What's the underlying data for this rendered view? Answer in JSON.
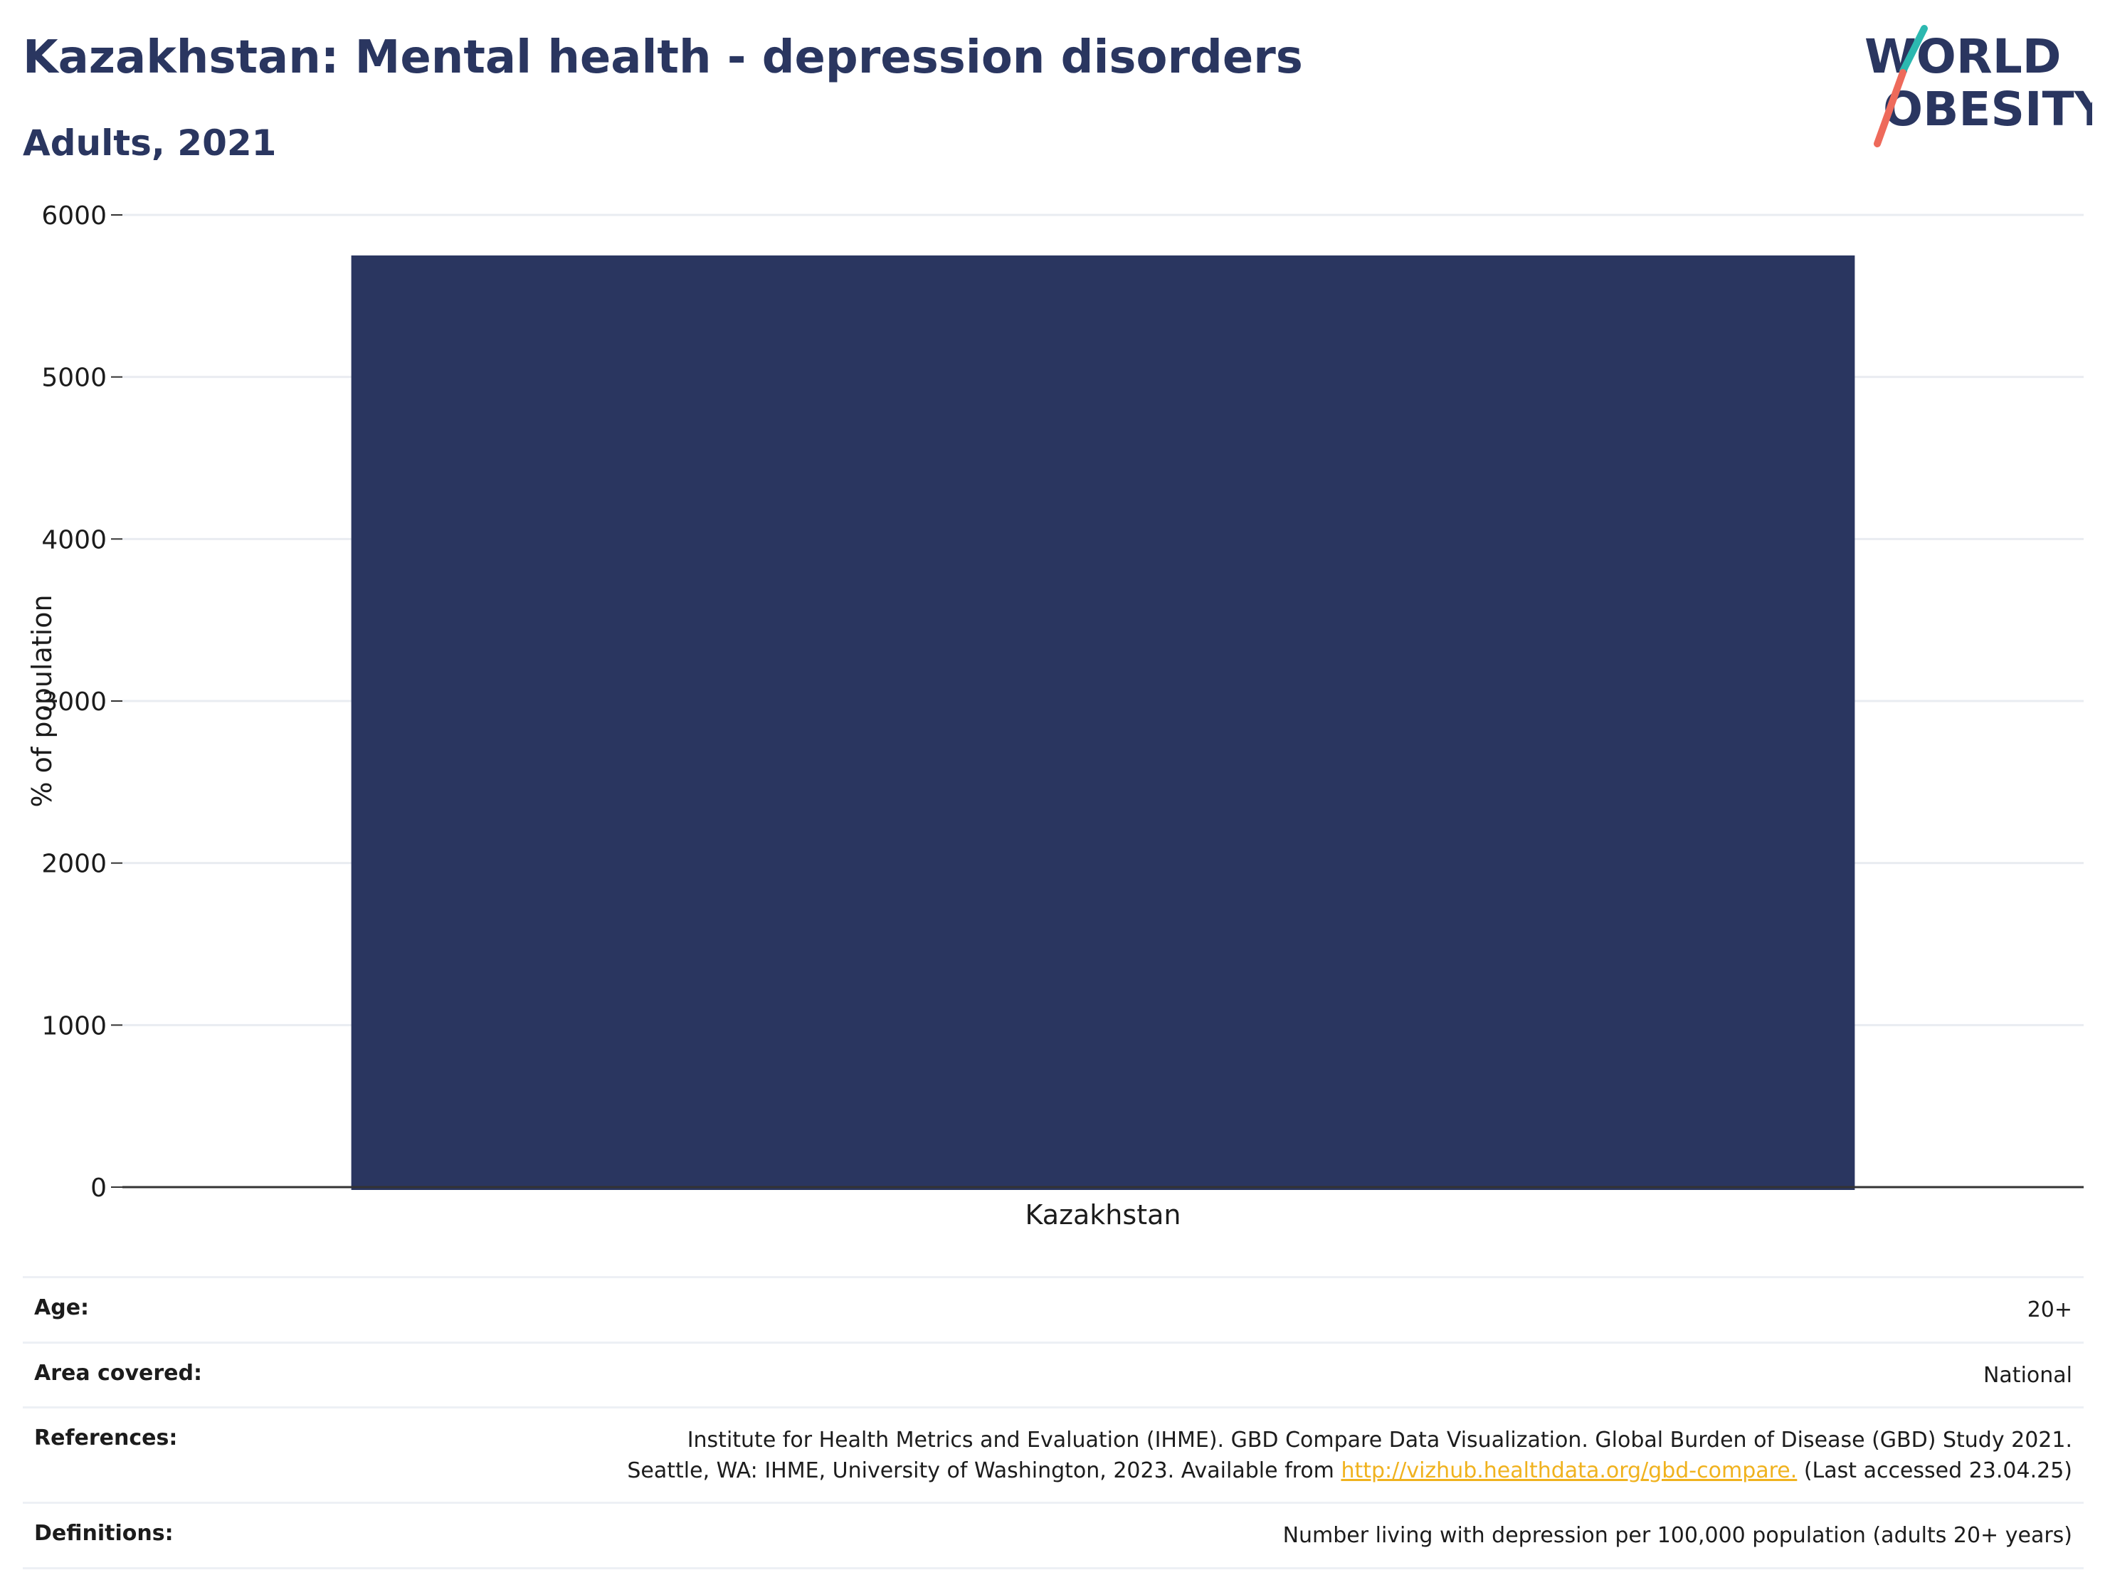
{
  "header": {
    "title": "Kazakhstan: Mental health - depression disorders",
    "subtitle": "Adults, 2021"
  },
  "logo": {
    "line1": "WORLD",
    "line2": "OBESITY",
    "colors": {
      "text": "#2a3660",
      "slash_top": "#2cb8b0",
      "slash_bottom": "#ee6a5b"
    }
  },
  "chart_data": {
    "type": "bar",
    "categories": [
      "Kazakhstan"
    ],
    "values": [
      5750
    ],
    "title": "",
    "xlabel": "",
    "ylabel": "% of population",
    "ylim": [
      0,
      6000
    ],
    "yticks": [
      0,
      1000,
      2000,
      3000,
      4000,
      5000,
      6000
    ],
    "grid": true,
    "legend": "none",
    "bar_color": "#2a3660"
  },
  "meta": {
    "age": {
      "label": "Age:",
      "value": "20+"
    },
    "area": {
      "label": "Area covered:",
      "value": "National"
    },
    "references": {
      "label": "References:",
      "line1": "Institute for Health Metrics and Evaluation (IHME). GBD Compare Data Visualization. Global Burden of Disease (GBD) Study 2021.",
      "line2_pre": "Seattle, WA: IHME, University of Washington, 2023. Available from ",
      "link": "http://vizhub.healthdata.org/gbd-compare.",
      "line2_post": " (Last accessed 23.04.25)"
    },
    "definitions": {
      "label": "Definitions:",
      "value": "Number living with depression per 100,000 population (adults 20+ years)"
    }
  }
}
